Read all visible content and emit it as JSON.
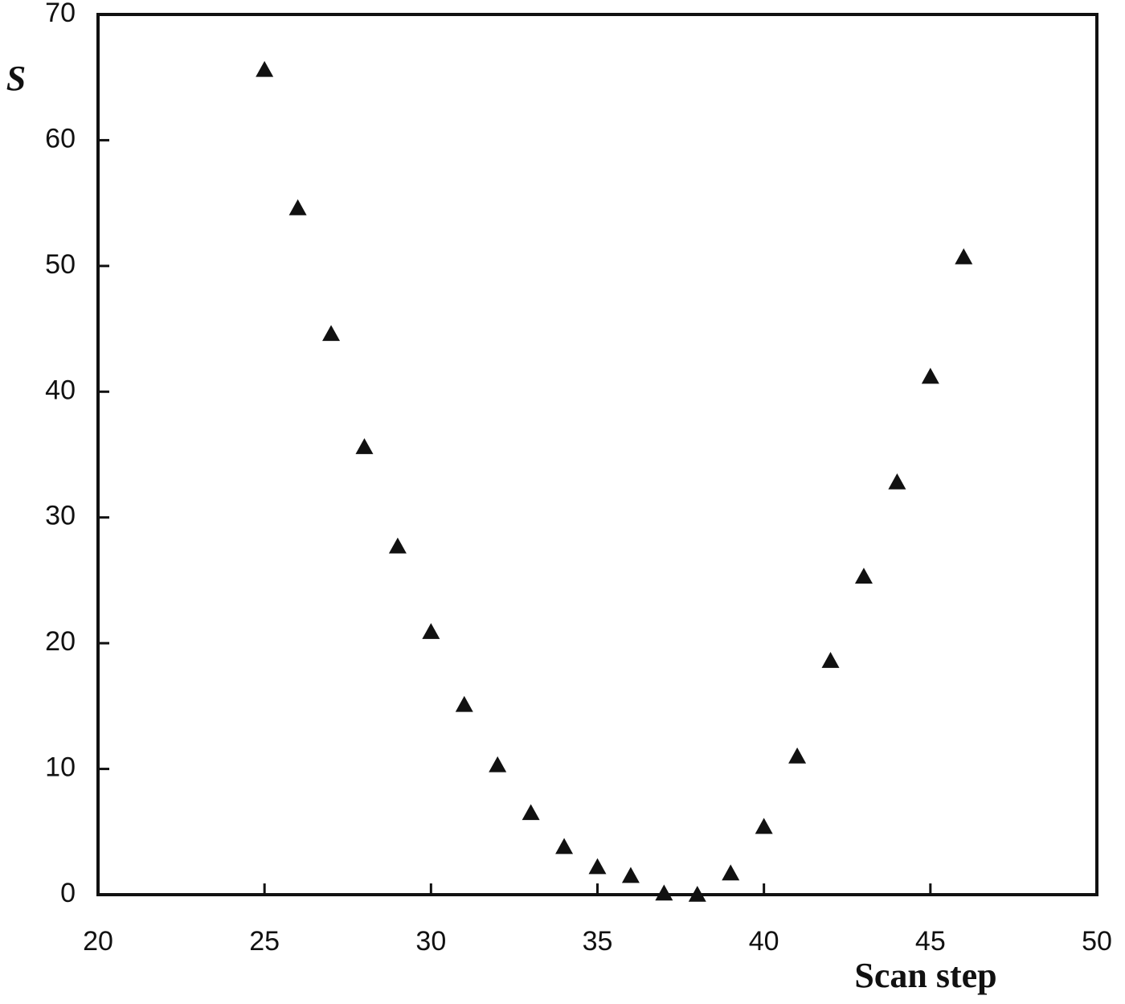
{
  "chart_data": {
    "type": "scatter",
    "x_label": "Scan step",
    "y_label": "S",
    "x": [
      25,
      26,
      27,
      28,
      29,
      30,
      31,
      32,
      33,
      34,
      35,
      36,
      37,
      38,
      39,
      40,
      41,
      42,
      43,
      44,
      45,
      46
    ],
    "series": [
      {
        "color": "#111111",
        "values": [
          65.6,
          54.6,
          44.6,
          35.6,
          27.7,
          20.9,
          15.1,
          10.3,
          6.5,
          3.8,
          2.2,
          1.5,
          0.1,
          0,
          1.7,
          5.4,
          11.0,
          18.6,
          25.3,
          32.8,
          41.2,
          50.7
        ]
      }
    ],
    "xlim": [
      20,
      50
    ],
    "xticks": [
      20,
      25,
      30,
      35,
      40,
      45,
      50
    ],
    "ylim": [
      0,
      70
    ],
    "yticks": [
      0,
      10,
      20,
      30,
      40,
      50,
      60,
      70
    ]
  }
}
